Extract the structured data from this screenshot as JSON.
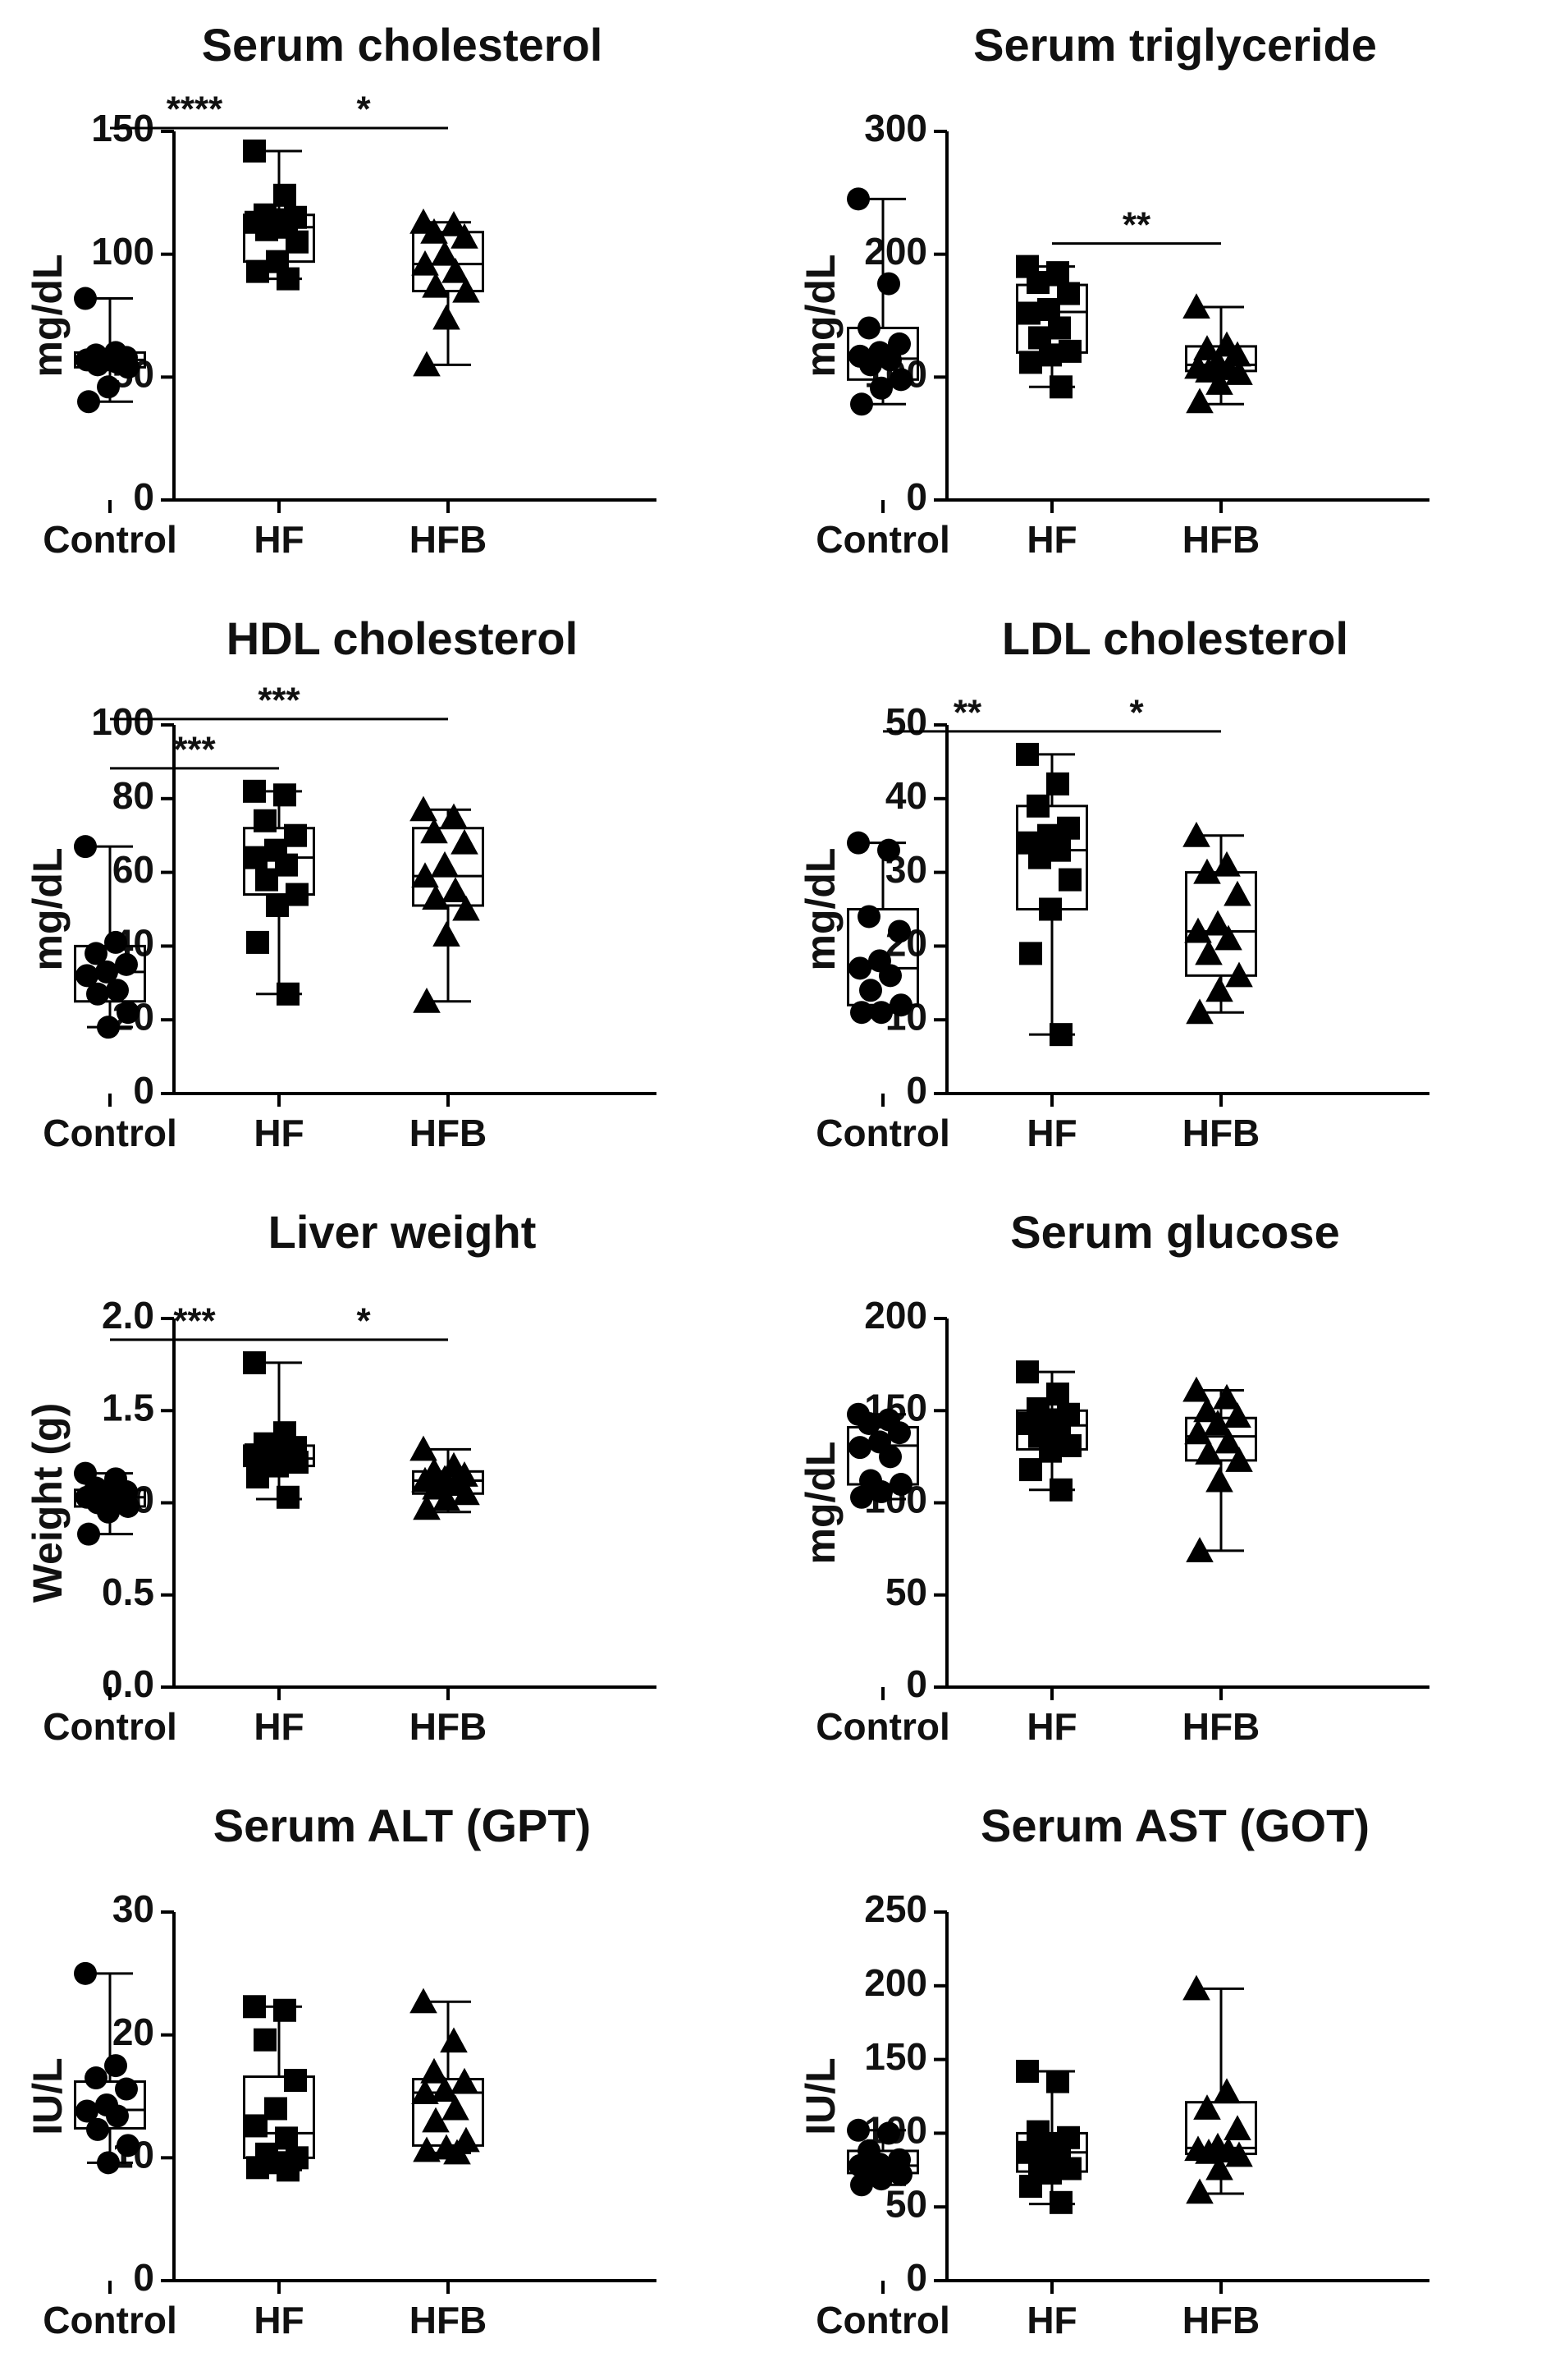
{
  "chart_data": [
    {
      "type": "box",
      "title": "Serum cholesterol",
      "ylabel": "mg/dL",
      "categories": [
        "Control",
        "HF",
        "HFB"
      ],
      "ylim": [
        0,
        150
      ],
      "yticks": [
        0,
        50,
        100,
        150
      ],
      "color": "#000000",
      "markers": [
        "circle",
        "square",
        "triangle"
      ],
      "groups": [
        {
          "min": 40,
          "q1": 54,
          "median": 57,
          "q3": 60,
          "max": 82,
          "points": [
            82,
            60,
            59,
            58,
            57,
            57,
            56,
            55,
            54,
            46,
            40
          ]
        },
        {
          "min": 90,
          "q1": 97,
          "median": 111,
          "q3": 116,
          "max": 142,
          "points": [
            142,
            124,
            116,
            115,
            114,
            113,
            111,
            110,
            105,
            97,
            93,
            90
          ]
        },
        {
          "min": 55,
          "q1": 85,
          "median": 96,
          "q3": 109,
          "max": 113,
          "points": [
            113,
            112,
            109,
            107,
            100,
            96,
            93,
            87,
            85,
            74,
            55
          ]
        }
      ],
      "significance": [
        {
          "groups": [
            0,
            1
          ],
          "label": "****"
        },
        {
          "groups": [
            1,
            2
          ],
          "label": "*"
        }
      ]
    },
    {
      "type": "box",
      "title": "Serum triglyceride",
      "ylabel": "mg/dL",
      "categories": [
        "Control",
        "HF",
        "HFB"
      ],
      "ylim": [
        0,
        300
      ],
      "yticks": [
        0,
        100,
        200,
        300
      ],
      "color": "#000000",
      "markers": [
        "circle",
        "square",
        "triangle"
      ],
      "groups": [
        {
          "min": 78,
          "q1": 98,
          "median": 115,
          "q3": 140,
          "max": 245,
          "points": [
            245,
            176,
            140,
            127,
            120,
            117,
            114,
            110,
            98,
            91,
            78
          ]
        },
        {
          "min": 92,
          "q1": 120,
          "median": 153,
          "q3": 175,
          "max": 190,
          "points": [
            190,
            185,
            177,
            168,
            155,
            152,
            140,
            132,
            121,
            118,
            112,
            92
          ]
        },
        {
          "min": 78,
          "q1": 105,
          "median": 110,
          "q3": 125,
          "max": 157,
          "points": [
            157,
            126,
            123,
            118,
            112,
            108,
            107,
            105,
            103,
            95,
            80
          ]
        }
      ],
      "significance": [
        {
          "groups": [
            1,
            2
          ],
          "label": "**"
        }
      ]
    },
    {
      "type": "box",
      "title": "HDL cholesterol",
      "ylabel": "mg/dL",
      "categories": [
        "Control",
        "HF",
        "HFB"
      ],
      "ylim": [
        0,
        100
      ],
      "yticks": [
        0,
        20,
        40,
        60,
        80,
        100
      ],
      "color": "#000000",
      "markers": [
        "circle",
        "square",
        "triangle"
      ],
      "groups": [
        {
          "min": 18,
          "q1": 25,
          "median": 33,
          "q3": 40,
          "max": 67,
          "points": [
            67,
            41,
            38,
            35,
            33,
            32,
            28,
            27,
            22,
            18
          ]
        },
        {
          "min": 27,
          "q1": 54,
          "median": 64,
          "q3": 72,
          "max": 82,
          "points": [
            82,
            81,
            74,
            70,
            66,
            64,
            62,
            58,
            54,
            51,
            41,
            27
          ]
        },
        {
          "min": 25,
          "q1": 51,
          "median": 59,
          "q3": 72,
          "max": 77,
          "points": [
            77,
            75,
            71,
            68,
            62,
            59,
            55,
            53,
            50,
            43,
            25
          ]
        }
      ],
      "significance": [
        {
          "groups": [
            0,
            1
          ],
          "label": "***"
        },
        {
          "groups": [
            0,
            2
          ],
          "label": "***"
        }
      ]
    },
    {
      "type": "box",
      "title": "LDL cholesterol",
      "ylabel": "mg/dL",
      "categories": [
        "Control",
        "HF",
        "HFB"
      ],
      "ylim": [
        0,
        50
      ],
      "yticks": [
        0,
        10,
        20,
        30,
        40,
        50
      ],
      "color": "#000000",
      "markers": [
        "circle",
        "square",
        "triangle"
      ],
      "groups": [
        {
          "min": 11,
          "q1": 12,
          "median": 17,
          "q3": 25,
          "max": 34,
          "points": [
            34,
            33,
            24,
            22,
            18,
            17,
            16,
            14,
            12,
            11,
            11
          ]
        },
        {
          "min": 8,
          "q1": 25,
          "median": 33,
          "q3": 39,
          "max": 46,
          "points": [
            46,
            42,
            39,
            36,
            35,
            34,
            33,
            32,
            29,
            25,
            19,
            8
          ]
        },
        {
          "min": 11,
          "q1": 16,
          "median": 22,
          "q3": 30,
          "max": 35,
          "points": [
            35,
            31,
            30,
            27,
            23,
            22,
            21,
            19,
            16,
            14,
            11
          ]
        }
      ],
      "significance": [
        {
          "groups": [
            0,
            1
          ],
          "label": "**"
        },
        {
          "groups": [
            1,
            2
          ],
          "label": "*"
        }
      ]
    },
    {
      "type": "box",
      "title": "Liver weight",
      "ylabel": "Weight (g)",
      "categories": [
        "Control",
        "HF",
        "HFB"
      ],
      "ylim": [
        0,
        2
      ],
      "yticks": [
        {
          "value": 0,
          "label": "0.0"
        },
        0.5,
        {
          "value": 1,
          "label": "1.0"
        },
        1.5,
        {
          "value": 2,
          "label": "2.0"
        }
      ],
      "color": "#000000",
      "markers": [
        "circle",
        "square",
        "triangle"
      ],
      "groups": [
        {
          "min": 0.83,
          "q1": 0.98,
          "median": 1.03,
          "q3": 1.07,
          "max": 1.16,
          "points": [
            1.16,
            1.13,
            1.08,
            1.06,
            1.05,
            1.03,
            1.02,
            1.0,
            0.98,
            0.95,
            0.83
          ]
        },
        {
          "min": 1.02,
          "q1": 1.2,
          "median": 1.24,
          "q3": 1.31,
          "max": 1.76,
          "points": [
            1.76,
            1.38,
            1.32,
            1.3,
            1.28,
            1.26,
            1.24,
            1.23,
            1.22,
            1.2,
            1.14,
            1.03
          ]
        },
        {
          "min": 0.95,
          "q1": 1.05,
          "median": 1.12,
          "q3": 1.17,
          "max": 1.29,
          "points": [
            1.29,
            1.2,
            1.17,
            1.15,
            1.13,
            1.12,
            1.1,
            1.08,
            1.05,
            1.02,
            0.97
          ]
        }
      ],
      "significance": [
        {
          "groups": [
            0,
            1
          ],
          "label": "***"
        },
        {
          "groups": [
            1,
            2
          ],
          "label": "*"
        }
      ]
    },
    {
      "type": "box",
      "title": "Serum glucose",
      "ylabel": "mg/dL",
      "categories": [
        "Control",
        "HF",
        "HFB"
      ],
      "ylim": [
        0,
        200
      ],
      "yticks": [
        0,
        50,
        100,
        150,
        200
      ],
      "color": "#000000",
      "markers": [
        "circle",
        "square",
        "triangle"
      ],
      "groups": [
        {
          "min": 102,
          "q1": 110,
          "median": 131,
          "q3": 141,
          "max": 148,
          "points": [
            148,
            145,
            143,
            138,
            133,
            130,
            125,
            112,
            110,
            106,
            103
          ]
        },
        {
          "min": 107,
          "q1": 129,
          "median": 142,
          "q3": 150,
          "max": 171,
          "points": [
            171,
            159,
            151,
            148,
            145,
            143,
            140,
            136,
            131,
            128,
            118,
            107
          ]
        },
        {
          "min": 74,
          "q1": 123,
          "median": 136,
          "q3": 146,
          "max": 161,
          "points": [
            161,
            157,
            150,
            147,
            143,
            138,
            133,
            127,
            123,
            112,
            74
          ]
        }
      ],
      "significance": []
    },
    {
      "type": "box",
      "title": "Serum ALT (GPT)",
      "ylabel": "IU/L",
      "categories": [
        "Control",
        "HF",
        "HFB"
      ],
      "ylim": [
        0,
        30
      ],
      "yticks": [
        0,
        10,
        20,
        30
      ],
      "color": "#000000",
      "markers": [
        "circle",
        "square",
        "triangle"
      ],
      "groups": [
        {
          "min": 9.6,
          "q1": 12.4,
          "median": 13.9,
          "q3": 16.2,
          "max": 25,
          "points": [
            25,
            17.5,
            16.5,
            15.6,
            14.3,
            13.8,
            13.4,
            12.3,
            11,
            9.6
          ]
        },
        {
          "min": 9,
          "q1": 10,
          "median": 12,
          "q3": 16.6,
          "max": 22.3,
          "points": [
            22.3,
            22,
            19.6,
            16.3,
            14,
            12.6,
            11.6,
            10.3,
            10,
            9.6,
            9.2,
            9
          ]
        },
        {
          "min": 10.4,
          "q1": 11,
          "median": 15.3,
          "q3": 16.4,
          "max": 22.7,
          "points": [
            22.7,
            19.5,
            17,
            16.2,
            15.5,
            15.3,
            14,
            13,
            11.4,
            10.8,
            10.6,
            10.4
          ]
        }
      ],
      "significance": []
    },
    {
      "type": "box",
      "title": "Serum AST (GOT)",
      "ylabel": "IU/L",
      "categories": [
        "Control",
        "HF",
        "HFB"
      ],
      "ylim": [
        0,
        250
      ],
      "yticks": [
        0,
        50,
        100,
        150,
        200,
        250
      ],
      "color": "#000000",
      "markers": [
        "circle",
        "square",
        "triangle"
      ],
      "groups": [
        {
          "min": 65,
          "q1": 73,
          "median": 78,
          "q3": 88,
          "max": 102,
          "points": [
            102,
            100,
            88,
            82,
            79,
            78,
            76,
            73,
            72,
            69,
            65
          ]
        },
        {
          "min": 52,
          "q1": 74,
          "median": 87,
          "q3": 100,
          "max": 142,
          "points": [
            142,
            135,
            101,
            97,
            92,
            87,
            84,
            78,
            76,
            73,
            64,
            53
          ]
        },
        {
          "min": 59,
          "q1": 86,
          "median": 90,
          "q3": 121,
          "max": 198,
          "points": [
            198,
            128,
            117,
            103,
            91,
            89,
            88,
            87,
            85,
            76,
            60
          ]
        }
      ],
      "significance": []
    }
  ]
}
